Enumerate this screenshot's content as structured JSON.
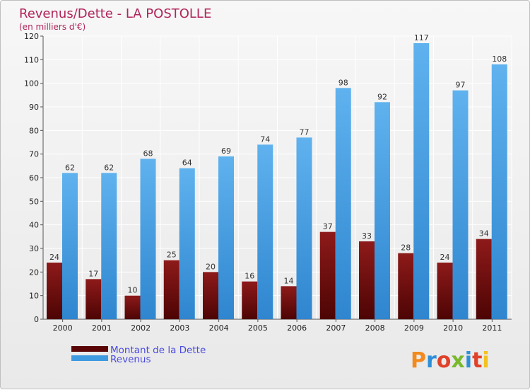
{
  "chart_data": {
    "type": "bar",
    "title": "Revenus/Dette - LA POSTOLLE",
    "subtitle": "(en milliers d'€)",
    "categories": [
      "2000",
      "2001",
      "2002",
      "2003",
      "2004",
      "2005",
      "2006",
      "2007",
      "2008",
      "2009",
      "2010",
      "2011"
    ],
    "series": [
      {
        "name": "Montant de la Dette",
        "color": "#7a1010",
        "values": [
          24,
          17,
          10,
          25,
          20,
          16,
          14,
          37,
          33,
          28,
          24,
          34
        ]
      },
      {
        "name": "Revenus",
        "color": "#4aa3e6",
        "values": [
          62,
          62,
          68,
          64,
          69,
          74,
          77,
          98,
          92,
          117,
          97,
          108
        ]
      }
    ],
    "ylim": [
      0,
      120
    ],
    "yticks": [
      0,
      10,
      20,
      30,
      40,
      50,
      60,
      70,
      80,
      90,
      100,
      110,
      120
    ],
    "grid": true,
    "legend_position": "bottom-left"
  },
  "logo": {
    "text": "Proxiti",
    "letter_colors": [
      "#f28a1e",
      "#2f8fd6",
      "#e0412a",
      "#7ab82d",
      "#2f8fd6",
      "#e0412a",
      "#f2c21e"
    ]
  }
}
